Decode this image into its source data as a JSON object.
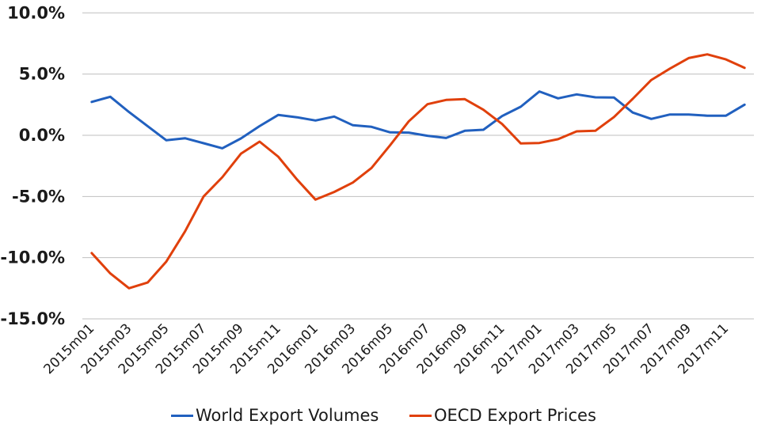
{
  "chart_data": {
    "type": "line",
    "title": "",
    "xlabel": "",
    "ylabel": "",
    "ylim": [
      -15,
      10
    ],
    "yticks": [
      10,
      5,
      0,
      -5,
      -10,
      -15
    ],
    "ytick_labels": [
      "10.0%",
      "5.0%",
      "0.0%",
      "-5.0%",
      "-10.0%",
      "-15.0%"
    ],
    "grid": true,
    "legend_position": "bottom",
    "x": [
      "2015m01",
      "2015m02",
      "2015m03",
      "2015m04",
      "2015m05",
      "2015m06",
      "2015m07",
      "2015m08",
      "2015m09",
      "2015m10",
      "2015m11",
      "2015m12",
      "2016m01",
      "2016m02",
      "2016m03",
      "2016m04",
      "2016m05",
      "2016m06",
      "2016m07",
      "2016m08",
      "2016m09",
      "2016m10",
      "2016m11",
      "2016m12",
      "2017m01",
      "2017m02",
      "2017m03",
      "2017m04",
      "2017m05",
      "2017m06",
      "2017m07",
      "2017m08",
      "2017m09",
      "2017m10",
      "2017m11",
      "2017m12"
    ],
    "xtick_labels": [
      "2015m01",
      "2015m03",
      "2015m05",
      "2015m07",
      "2015m09",
      "2015m11",
      "2016m01",
      "2016m03",
      "2016m05",
      "2016m07",
      "2016m09",
      "2016m11",
      "2017m01",
      "2017m03",
      "2017m05",
      "2017m07",
      "2017m09",
      "2017m11"
    ],
    "series": [
      {
        "name": "World Export Volumes",
        "color": "#2160bf",
        "values": [
          2.73,
          3.15,
          1.9,
          0.75,
          -0.41,
          -0.24,
          -0.65,
          -1.06,
          -0.26,
          0.75,
          1.66,
          1.47,
          1.21,
          1.53,
          0.82,
          0.69,
          0.24,
          0.22,
          -0.04,
          -0.22,
          0.37,
          0.45,
          1.57,
          2.33,
          3.58,
          3.02,
          3.34,
          3.1,
          3.08,
          1.86,
          1.34,
          1.7,
          1.7,
          1.6,
          1.6,
          2.5
        ]
      },
      {
        "name": "OECD Export Prices",
        "color": "#e0400c",
        "values": [
          -9.63,
          -11.29,
          -12.5,
          -12.03,
          -10.32,
          -7.86,
          -5.0,
          -3.43,
          -1.51,
          -0.52,
          -1.75,
          -3.6,
          -5.26,
          -4.63,
          -3.86,
          -2.67,
          -0.8,
          1.14,
          2.54,
          2.89,
          2.95,
          2.09,
          0.92,
          -0.67,
          -0.63,
          -0.32,
          0.32,
          0.37,
          1.49,
          2.97,
          4.52,
          5.45,
          6.31,
          6.61,
          6.2,
          5.51
        ]
      }
    ]
  }
}
